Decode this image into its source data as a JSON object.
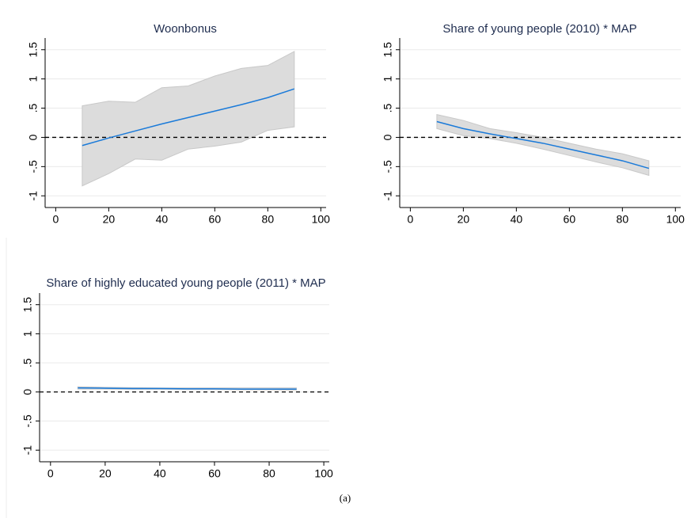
{
  "chart_data": [
    {
      "type": "line",
      "title": "Woonbonus",
      "x": [
        10,
        20,
        30,
        40,
        50,
        60,
        70,
        80,
        90
      ],
      "values": [
        -0.14,
        -0.01,
        0.11,
        0.23,
        0.34,
        0.45,
        0.56,
        0.68,
        0.83
      ],
      "upper": [
        0.54,
        0.62,
        0.6,
        0.85,
        0.88,
        1.05,
        1.18,
        1.23,
        1.47
      ],
      "lower": [
        -0.83,
        -0.62,
        -0.37,
        -0.39,
        -0.2,
        -0.15,
        -0.08,
        0.12,
        0.18
      ],
      "color": "#1a7ad9",
      "band_color": "#dcdcdc",
      "reference_line": 0,
      "xlim": [
        -4,
        102
      ],
      "xticks": [
        0,
        20,
        40,
        60,
        80,
        100
      ],
      "ylim": [
        -1.2,
        1.7
      ],
      "yticks": [
        -1,
        {
          "value": -0.5,
          "label": "-.5"
        },
        0,
        {
          "value": 0.5,
          "label": ".5"
        },
        1,
        1.5
      ],
      "grid": true
    },
    {
      "type": "line",
      "title": "Share of young people (2010) * MAP",
      "x": [
        10,
        20,
        30,
        40,
        50,
        60,
        70,
        80,
        90
      ],
      "values": [
        0.27,
        0.15,
        0.06,
        -0.02,
        -0.1,
        -0.2,
        -0.3,
        -0.4,
        -0.53
      ],
      "upper": [
        0.39,
        0.29,
        0.15,
        0.08,
        0.0,
        -0.1,
        -0.2,
        -0.28,
        -0.4
      ],
      "lower": [
        0.15,
        0.03,
        -0.02,
        -0.1,
        -0.2,
        -0.31,
        -0.42,
        -0.52,
        -0.65
      ],
      "color": "#1a7ad9",
      "band_color": "#dcdcdc",
      "reference_line": 0,
      "xlim": [
        -4,
        102
      ],
      "xticks": [
        0,
        20,
        40,
        60,
        80,
        100
      ],
      "ylim": [
        -1.2,
        1.7
      ],
      "yticks": [
        -1,
        {
          "value": -0.5,
          "label": "-.5"
        },
        0,
        {
          "value": 0.5,
          "label": ".5"
        },
        1,
        1.5
      ],
      "grid": true
    },
    {
      "type": "line",
      "title": "Share of highly educated young people (2011) * MAP",
      "x": [
        10,
        20,
        30,
        40,
        50,
        60,
        70,
        80,
        90
      ],
      "values": [
        0.07,
        0.065,
        0.06,
        0.06,
        0.055,
        0.055,
        0.05,
        0.05,
        0.05
      ],
      "upper": [
        0.09,
        0.08,
        0.075,
        0.07,
        0.07,
        0.07,
        0.07,
        0.07,
        0.07
      ],
      "lower": [
        0.05,
        0.05,
        0.045,
        0.045,
        0.04,
        0.04,
        0.035,
        0.035,
        0.03
      ],
      "color": "#1a7ad9",
      "band_color": "#dcdcdc",
      "reference_line": 0,
      "xlim": [
        -4,
        102
      ],
      "xticks": [
        0,
        20,
        40,
        60,
        80,
        100
      ],
      "ylim": [
        -1.2,
        1.7
      ],
      "yticks": [
        -1,
        {
          "value": -0.5,
          "label": "-.5"
        },
        0,
        {
          "value": 0.5,
          "label": ".5"
        },
        1,
        1.5
      ],
      "grid": true
    }
  ],
  "caption": "(a)"
}
